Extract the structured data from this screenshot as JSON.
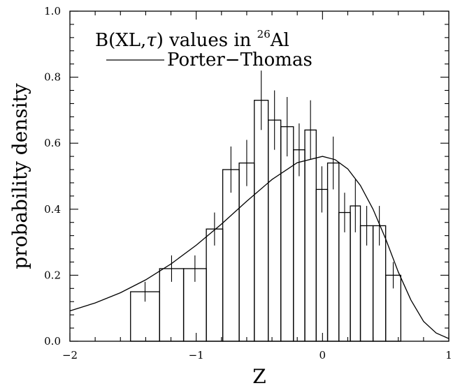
{
  "chart_data": {
    "type": "bar",
    "title": "",
    "xlabel": "Z",
    "ylabel": "probability density",
    "xlim": [
      -2,
      1
    ],
    "ylim": [
      0,
      1.0
    ],
    "x_ticks": [
      -2,
      -1,
      0,
      1
    ],
    "x_tick_labels": [
      "−2",
      "−1",
      "0",
      "1"
    ],
    "y_ticks": [
      0,
      0.2,
      0.4,
      0.6,
      0.8,
      1.0
    ],
    "y_tick_labels": [
      "0.0",
      "0.2",
      "0.4",
      "0.6",
      "0.8",
      "1.0"
    ],
    "legend": {
      "entry_main": "B(XL,",
      "entry_tau": "τ",
      "entry_rest": ") values in ",
      "entry_superscript": "26",
      "entry_element": "Al",
      "curve_label": "Porter−Thomas",
      "placement": "top-left"
    },
    "series": [
      {
        "type": "histogram",
        "bins": [
          {
            "x0": -1.52,
            "x1": -1.29,
            "value": 0.15,
            "err": 0.03
          },
          {
            "x0": -1.29,
            "x1": -1.1,
            "value": 0.22,
            "err": 0.04
          },
          {
            "x0": -1.1,
            "x1": -0.92,
            "value": 0.22,
            "err": 0.04
          },
          {
            "x0": -0.92,
            "x1": -0.79,
            "value": 0.34,
            "err": 0.05
          },
          {
            "x0": -0.79,
            "x1": -0.66,
            "value": 0.52,
            "err": 0.07
          },
          {
            "x0": -0.66,
            "x1": -0.54,
            "value": 0.54,
            "err": 0.07
          },
          {
            "x0": -0.54,
            "x1": -0.43,
            "value": 0.73,
            "err": 0.09
          },
          {
            "x0": -0.43,
            "x1": -0.33,
            "value": 0.67,
            "err": 0.09
          },
          {
            "x0": -0.33,
            "x1": -0.23,
            "value": 0.65,
            "err": 0.09
          },
          {
            "x0": -0.23,
            "x1": -0.14,
            "value": 0.58,
            "err": 0.08
          },
          {
            "x0": -0.14,
            "x1": -0.05,
            "value": 0.64,
            "err": 0.09
          },
          {
            "x0": -0.05,
            "x1": 0.04,
            "value": 0.46,
            "err": 0.07
          },
          {
            "x0": 0.04,
            "x1": 0.13,
            "value": 0.54,
            "err": 0.08
          },
          {
            "x0": 0.13,
            "x1": 0.22,
            "value": 0.39,
            "err": 0.06
          },
          {
            "x0": 0.22,
            "x1": 0.3,
            "value": 0.41,
            "err": 0.08
          },
          {
            "x0": 0.3,
            "x1": 0.4,
            "value": 0.35,
            "err": 0.06
          },
          {
            "x0": 0.4,
            "x1": 0.5,
            "value": 0.35,
            "err": 0.06
          },
          {
            "x0": 0.5,
            "x1": 0.62,
            "value": 0.2,
            "err": 0.04
          }
        ]
      },
      {
        "type": "line",
        "x": [
          -2.0,
          -1.8,
          -1.6,
          -1.4,
          -1.2,
          -1.0,
          -0.8,
          -0.6,
          -0.4,
          -0.2,
          0.0,
          0.1,
          0.2,
          0.3,
          0.4,
          0.5,
          0.6,
          0.7,
          0.8,
          0.9,
          1.0
        ],
        "y": [
          0.092,
          0.116,
          0.147,
          0.186,
          0.234,
          0.291,
          0.355,
          0.424,
          0.49,
          0.541,
          0.56,
          0.55,
          0.522,
          0.472,
          0.4,
          0.31,
          0.21,
          0.125,
          0.06,
          0.025,
          0.008
        ]
      }
    ]
  }
}
